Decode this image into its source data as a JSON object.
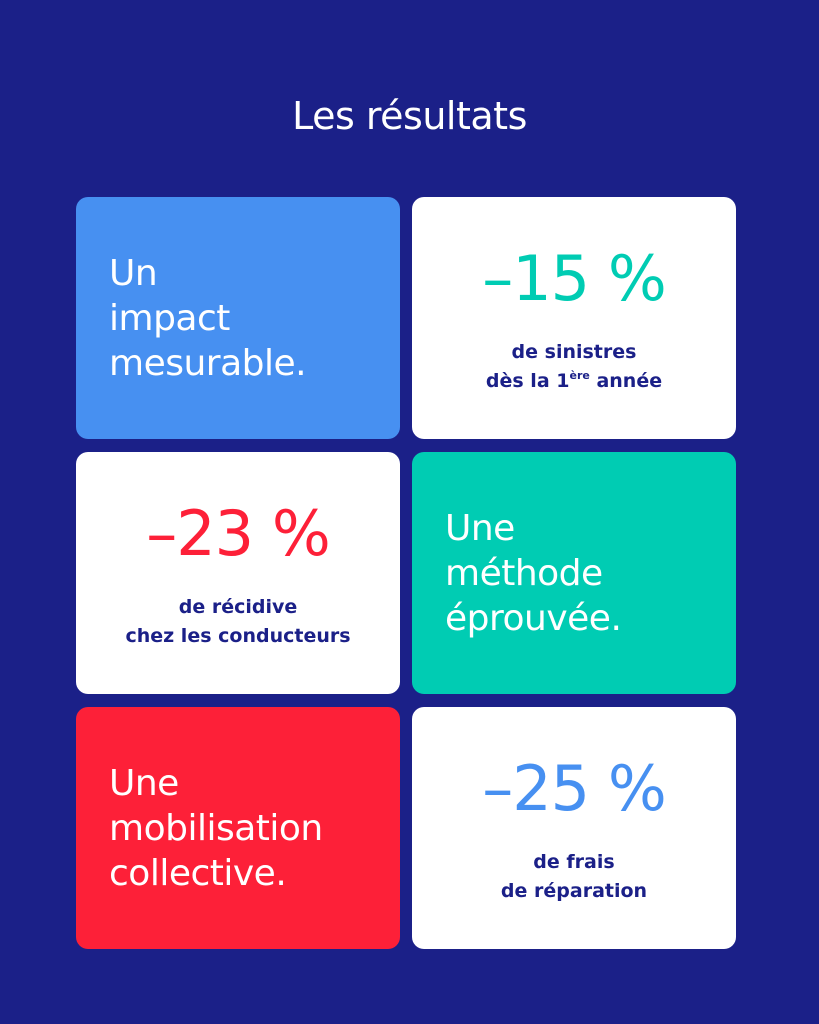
{
  "title": "Les résultats",
  "cards": {
    "impact": {
      "lines": [
        "Un",
        "impact",
        "mesurable."
      ]
    },
    "sinistres": {
      "value": "–15 %",
      "line1": "de sinistres",
      "line2_pre": "dès la 1",
      "line2_sup": "ère",
      "line2_post": " année"
    },
    "recidive": {
      "value": "–23 %",
      "line1": "de récidive",
      "line2": "chez les conducteurs"
    },
    "methode": {
      "lines": [
        "Une",
        "méthode",
        "éprouvée."
      ]
    },
    "mobilisation": {
      "lines": [
        "Une",
        "mobilisation",
        "collective."
      ]
    },
    "reparation": {
      "value": "–25 %",
      "line1": "de frais",
      "line2": "de réparation"
    }
  },
  "colors": {
    "background": "#1b2088",
    "blue": "#4790f1",
    "teal": "#00ccb3",
    "red": "#fd2038",
    "white": "#ffffff"
  }
}
